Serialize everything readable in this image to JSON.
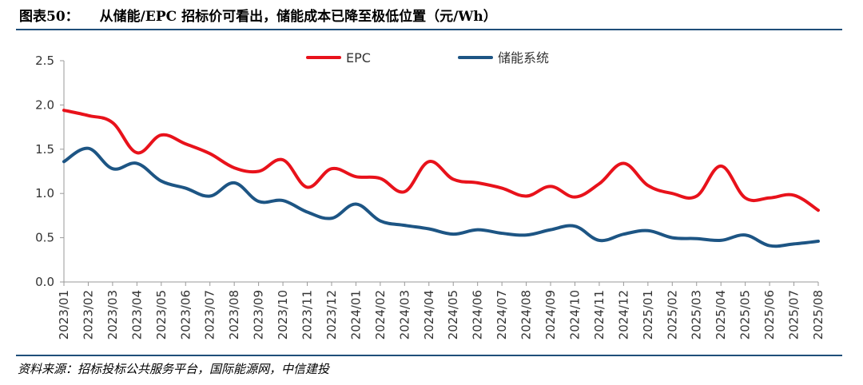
{
  "header": {
    "label": "图表50：",
    "title": "从储能/EPC 招标价可看出，储能成本已降至极低位置（元/Wh）"
  },
  "source": "资料来源：招标投标公共服务平台，国际能源网，中信建投",
  "chart_data": {
    "type": "line",
    "title": "从储能/EPC 招标价可看出，储能成本已降至极低位置（元/Wh）",
    "ylabel": "元/Wh",
    "ylim": [
      0,
      2.5
    ],
    "yticks": [
      "0.0",
      "0.5",
      "1.0",
      "1.5",
      "2.0",
      "2.5"
    ],
    "legend_position": "top-center",
    "categories": [
      "2023/01",
      "2023/02",
      "2023/03",
      "2023/04",
      "2023/05",
      "2023/06",
      "2023/07",
      "2023/08",
      "2023/09",
      "2023/10",
      "2023/11",
      "2023/12",
      "2024/01",
      "2024/02",
      "2024/03",
      "2024/04",
      "2024/05",
      "2024/06",
      "2024/07",
      "2024/08",
      "2024/09",
      "2024/10",
      "2024/11",
      "2024/12",
      "2025/01",
      "2025/02",
      "2025/03",
      "2025/04",
      "2025/05",
      "2025/06",
      "2025/07",
      "2025/08"
    ],
    "series": [
      {
        "name": "EPC",
        "color": "#e8121b",
        "values": [
          1.94,
          1.88,
          1.8,
          1.46,
          1.66,
          1.56,
          1.45,
          1.29,
          1.25,
          1.38,
          1.07,
          1.28,
          1.19,
          1.17,
          1.02,
          1.36,
          1.16,
          1.12,
          1.06,
          0.97,
          1.08,
          0.96,
          1.11,
          1.34,
          1.09,
          1.0,
          0.97,
          1.31,
          0.95,
          0.95,
          0.98,
          0.81
        ]
      },
      {
        "name": "储能系统",
        "color": "#1d5584",
        "values": [
          1.36,
          1.51,
          1.28,
          1.34,
          1.14,
          1.06,
          0.97,
          1.12,
          0.91,
          0.92,
          0.79,
          0.72,
          0.88,
          0.69,
          0.64,
          0.6,
          0.54,
          0.59,
          0.55,
          0.53,
          0.59,
          0.63,
          0.47,
          0.54,
          0.58,
          0.5,
          0.49,
          0.47,
          0.53,
          0.41,
          0.43,
          0.46
        ]
      }
    ]
  }
}
